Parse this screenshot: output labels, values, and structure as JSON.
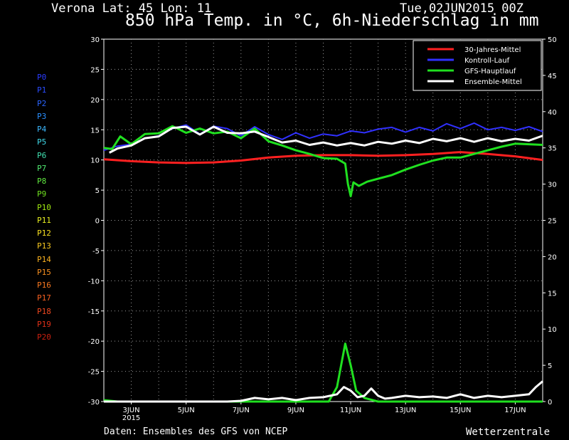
{
  "header": {
    "location": "Verona   Lat: 45 Lon: 11",
    "run": "Tue,02JUN2015 00Z",
    "title": "850 hPa Temp. in °C, 6h-Niederschlag in mm"
  },
  "footer": {
    "credit": "Daten: Ensembles des GFS von NCEP",
    "brand": "Wetterzentrale"
  },
  "members": [
    {
      "label": "P0",
      "color": "#2a3cff"
    },
    {
      "label": "P1",
      "color": "#2a4cff"
    },
    {
      "label": "P2",
      "color": "#2a64ff"
    },
    {
      "label": "P3",
      "color": "#2a90ff"
    },
    {
      "label": "P4",
      "color": "#3cb8ff"
    },
    {
      "label": "P5",
      "color": "#40d8e8"
    },
    {
      "label": "P6",
      "color": "#40e0b0"
    },
    {
      "label": "P7",
      "color": "#50e870"
    },
    {
      "label": "P8",
      "color": "#60e840"
    },
    {
      "label": "P9",
      "color": "#70e020"
    },
    {
      "label": "P10",
      "color": "#a0e810"
    },
    {
      "label": "P11",
      "color": "#e8f020"
    },
    {
      "label": "P12",
      "color": "#f8e020"
    },
    {
      "label": "P13",
      "color": "#f8c820"
    },
    {
      "label": "P14",
      "color": "#f8b020"
    },
    {
      "label": "P15",
      "color": "#f89020"
    },
    {
      "label": "P16",
      "color": "#f87820"
    },
    {
      "label": "P17",
      "color": "#f86020"
    },
    {
      "label": "P18",
      "color": "#f04820"
    },
    {
      "label": "P19",
      "color": "#e03018"
    },
    {
      "label": "P20",
      "color": "#c82010"
    }
  ],
  "chart_data": {
    "type": "line",
    "x_labels": [
      "3JUN",
      "5JUN",
      "7JUN",
      "9JUN",
      "11JUN",
      "13JUN",
      "15JUN",
      "17JUN"
    ],
    "x_sublabel": "2015",
    "x_range_days": [
      2,
      18
    ],
    "y_left": {
      "min": -30,
      "max": 30,
      "ticks": [
        30,
        25,
        20,
        15,
        10,
        5,
        0,
        -5,
        -10,
        -15,
        -20,
        -25,
        -30
      ]
    },
    "y_right": {
      "min": 0,
      "max": 50,
      "ticks": [
        50,
        45,
        40,
        35,
        30,
        25,
        20,
        15,
        10,
        5,
        0
      ]
    },
    "grid": true,
    "legend_position": "top-right",
    "series": [
      {
        "name": "30-Jahres-Mittel",
        "color": "#ff2020",
        "width": 3,
        "axis": "left",
        "points": [
          [
            2.0,
            10.1
          ],
          [
            3.0,
            9.8
          ],
          [
            4.0,
            9.6
          ],
          [
            5.0,
            9.5
          ],
          [
            6.0,
            9.6
          ],
          [
            7.0,
            9.9
          ],
          [
            8.0,
            10.4
          ],
          [
            9.0,
            10.7
          ],
          [
            10.0,
            10.8
          ],
          [
            11.0,
            10.8
          ],
          [
            12.0,
            10.7
          ],
          [
            13.0,
            10.8
          ],
          [
            14.0,
            11.0
          ],
          [
            15.0,
            11.3
          ],
          [
            16.0,
            11.0
          ],
          [
            17.0,
            10.6
          ],
          [
            18.0,
            10.0
          ]
        ]
      },
      {
        "name": "Kontroll-Lauf",
        "color": "#3030ff",
        "width": 2,
        "axis": "left",
        "points": [
          [
            2.0,
            11.6
          ],
          [
            2.5,
            12.3
          ],
          [
            3.0,
            12.6
          ],
          [
            3.5,
            13.6
          ],
          [
            4.0,
            14.0
          ],
          [
            4.5,
            15.2
          ],
          [
            5.0,
            15.8
          ],
          [
            5.5,
            14.3
          ],
          [
            6.0,
            15.6
          ],
          [
            6.5,
            15.2
          ],
          [
            7.0,
            14.0
          ],
          [
            7.5,
            15.5
          ],
          [
            8.0,
            14.2
          ],
          [
            8.5,
            13.4
          ],
          [
            9.0,
            14.5
          ],
          [
            9.5,
            13.6
          ],
          [
            10.0,
            14.3
          ],
          [
            10.5,
            14.0
          ],
          [
            11.0,
            14.8
          ],
          [
            11.5,
            14.5
          ],
          [
            12.0,
            15.1
          ],
          [
            12.5,
            15.4
          ],
          [
            13.0,
            14.6
          ],
          [
            13.5,
            15.4
          ],
          [
            14.0,
            14.8
          ],
          [
            14.5,
            16.0
          ],
          [
            15.0,
            15.2
          ],
          [
            15.5,
            16.1
          ],
          [
            16.0,
            15.0
          ],
          [
            16.5,
            15.4
          ],
          [
            17.0,
            14.9
          ],
          [
            17.5,
            15.5
          ],
          [
            18.0,
            14.7
          ]
        ]
      },
      {
        "name": "GFS-Hauptlauf",
        "color": "#20e020",
        "width": 3,
        "axis": "left",
        "points": [
          [
            2.0,
            12.0
          ],
          [
            2.3,
            11.8
          ],
          [
            2.6,
            13.9
          ],
          [
            3.0,
            12.6
          ],
          [
            3.5,
            14.3
          ],
          [
            4.0,
            14.4
          ],
          [
            4.5,
            15.6
          ],
          [
            5.0,
            14.5
          ],
          [
            5.5,
            15.2
          ],
          [
            6.0,
            14.4
          ],
          [
            6.5,
            14.7
          ],
          [
            7.0,
            13.6
          ],
          [
            7.5,
            15.2
          ],
          [
            8.0,
            13.1
          ],
          [
            8.5,
            12.4
          ],
          [
            9.0,
            11.6
          ],
          [
            9.5,
            11.0
          ],
          [
            10.0,
            10.3
          ],
          [
            10.5,
            10.2
          ],
          [
            10.8,
            9.4
          ],
          [
            10.9,
            6.0
          ],
          [
            11.0,
            4.0
          ],
          [
            11.1,
            6.3
          ],
          [
            11.3,
            5.7
          ],
          [
            11.6,
            6.4
          ],
          [
            12.0,
            6.9
          ],
          [
            12.5,
            7.5
          ],
          [
            13.0,
            8.4
          ],
          [
            13.5,
            9.2
          ],
          [
            14.0,
            9.9
          ],
          [
            14.5,
            10.4
          ],
          [
            15.0,
            10.4
          ],
          [
            15.5,
            11.0
          ],
          [
            16.0,
            11.6
          ],
          [
            16.5,
            12.2
          ],
          [
            17.0,
            12.7
          ],
          [
            17.5,
            12.6
          ],
          [
            18.0,
            12.5
          ]
        ]
      },
      {
        "name": "Ensemble-Mittel",
        "color": "#ffffff",
        "width": 3,
        "axis": "left",
        "points": [
          [
            2.2,
            11.2
          ],
          [
            2.5,
            11.9
          ],
          [
            3.0,
            12.4
          ],
          [
            3.5,
            13.6
          ],
          [
            4.0,
            13.9
          ],
          [
            4.5,
            15.3
          ],
          [
            5.0,
            15.5
          ],
          [
            5.5,
            14.2
          ],
          [
            6.0,
            15.5
          ],
          [
            6.5,
            14.5
          ],
          [
            7.0,
            14.4
          ],
          [
            7.5,
            14.7
          ],
          [
            8.0,
            13.8
          ],
          [
            8.5,
            12.9
          ],
          [
            9.0,
            13.2
          ],
          [
            9.5,
            12.5
          ],
          [
            10.0,
            12.9
          ],
          [
            10.5,
            12.4
          ],
          [
            11.0,
            12.8
          ],
          [
            11.5,
            12.4
          ],
          [
            12.0,
            13.0
          ],
          [
            12.5,
            12.7
          ],
          [
            13.0,
            13.2
          ],
          [
            13.5,
            12.8
          ],
          [
            14.0,
            13.5
          ],
          [
            14.5,
            13.1
          ],
          [
            15.0,
            13.6
          ],
          [
            15.5,
            13.0
          ],
          [
            16.0,
            13.6
          ],
          [
            16.5,
            13.1
          ],
          [
            17.0,
            13.5
          ],
          [
            17.5,
            13.2
          ],
          [
            18.0,
            14.0
          ]
        ]
      },
      {
        "name": "GFS-Hauptlauf",
        "color": "#20e020",
        "width": 3,
        "axis": "right",
        "points": [
          [
            2.0,
            0.2
          ],
          [
            2.5,
            0.0
          ],
          [
            9.0,
            0.0
          ],
          [
            10.2,
            0.0
          ],
          [
            10.5,
            2.0
          ],
          [
            10.8,
            8.0
          ],
          [
            11.0,
            5.0
          ],
          [
            11.2,
            1.5
          ],
          [
            11.5,
            0.5
          ],
          [
            12.0,
            0.0
          ],
          [
            18.0,
            0.0
          ]
        ]
      },
      {
        "name": "Ensemble-Mittel",
        "color": "#ffffff",
        "width": 3,
        "axis": "right",
        "points": [
          [
            2.0,
            0.0
          ],
          [
            6.5,
            0.0
          ],
          [
            7.0,
            0.1
          ],
          [
            7.5,
            0.5
          ],
          [
            8.0,
            0.3
          ],
          [
            8.5,
            0.5
          ],
          [
            9.0,
            0.2
          ],
          [
            9.5,
            0.5
          ],
          [
            10.0,
            0.6
          ],
          [
            10.5,
            1.0
          ],
          [
            10.75,
            2.0
          ],
          [
            11.0,
            1.5
          ],
          [
            11.25,
            0.6
          ],
          [
            11.5,
            0.8
          ],
          [
            11.75,
            1.8
          ],
          [
            12.0,
            0.8
          ],
          [
            12.25,
            0.4
          ],
          [
            12.5,
            0.5
          ],
          [
            13.0,
            0.8
          ],
          [
            13.5,
            0.6
          ],
          [
            14.0,
            0.7
          ],
          [
            14.5,
            0.5
          ],
          [
            15.0,
            1.0
          ],
          [
            15.5,
            0.5
          ],
          [
            16.0,
            0.8
          ],
          [
            16.5,
            0.6
          ],
          [
            17.0,
            0.8
          ],
          [
            17.5,
            1.0
          ],
          [
            17.75,
            2.0
          ],
          [
            18.0,
            2.8
          ]
        ]
      }
    ]
  }
}
